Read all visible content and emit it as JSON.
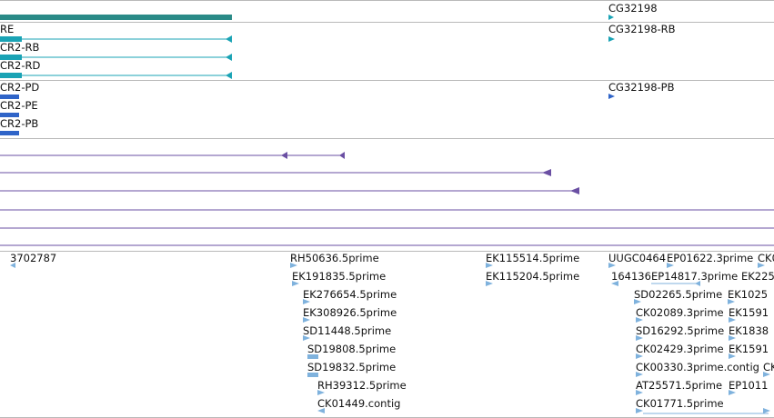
{
  "colors": {
    "gene_bar": "#2a8a87",
    "transcript": "#1aa3b5",
    "transcript_pb": "#2f64c8",
    "alignment": "#6a4fa3",
    "est": "#7fb2dd"
  },
  "gene_track": {
    "gene_label": "CG32198",
    "transcripts_left": [
      "RE",
      "CR2-RB",
      "CR2-RD"
    ],
    "transcript_right": "CG32198-RB"
  },
  "protein_track": {
    "transcripts_left": [
      "CR2-PD",
      "CR2-PE",
      "CR2-PB"
    ],
    "transcript_right": "CG32198-PB"
  },
  "est_track": {
    "left_label": "3702787",
    "column_b": [
      "RH50636.5prime",
      "EK191835.5prime",
      "EK276654.5prime",
      "EK308926.5prime",
      "SD11448.5prime",
      "SD19808.5prime",
      "SD19832.5prime",
      "RH39312.5prime",
      "CK01449.contig"
    ],
    "column_c": [
      "EK115514.5prime",
      "EK115204.5prime"
    ],
    "column_d_top": [
      "UUGC0464",
      "EP01622.3prime",
      "CK0"
    ],
    "column_d_second": [
      "164136",
      "EP14817.3prime",
      "EK225"
    ],
    "column_d": [
      "SD02265.5prime",
      "CK02089.3prime",
      "SD16292.5prime",
      "CK02429.3prime",
      "CK00330.3prime.contig",
      "AT25571.5prime",
      "CK01771.5prime"
    ],
    "column_e": [
      "EK1025",
      "EK1591",
      "EK1838",
      "EK1591",
      "CK0",
      "EP1011",
      ""
    ]
  }
}
